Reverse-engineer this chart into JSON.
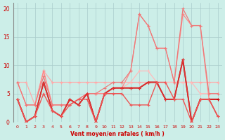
{
  "xlabel": "Vent moyen/en rafales ( km/h )",
  "bg_color": "#cceee8",
  "grid_color": "#aacccc",
  "xlim": [
    -0.5,
    23.5
  ],
  "ylim": [
    0,
    21
  ],
  "xticks": [
    0,
    1,
    2,
    3,
    4,
    5,
    6,
    7,
    8,
    9,
    10,
    11,
    12,
    13,
    14,
    15,
    16,
    17,
    18,
    19,
    20,
    21,
    22,
    23
  ],
  "yticks": [
    0,
    5,
    10,
    15,
    20
  ],
  "series": [
    {
      "x": [
        0,
        1,
        2,
        3,
        4,
        5,
        6,
        7,
        8,
        9,
        10,
        11,
        12,
        13,
        14,
        15,
        16,
        17,
        18,
        19,
        20,
        21,
        22,
        23
      ],
      "y": [
        7,
        7,
        3,
        9,
        7,
        7,
        7,
        7,
        7,
        7,
        7,
        7,
        7,
        7,
        7,
        7,
        7,
        7,
        7,
        7,
        7,
        7,
        7,
        7
      ],
      "color": "#ffaaaa",
      "lw": 0.9
    },
    {
      "x": [
        0,
        1,
        2,
        3,
        4,
        5,
        6,
        7,
        8,
        9,
        10,
        11,
        12,
        13,
        14,
        15,
        16,
        17,
        18,
        19,
        20,
        21,
        22,
        23
      ],
      "y": [
        7,
        3,
        3,
        9,
        3,
        3,
        3,
        4,
        5,
        5,
        5,
        6,
        6,
        7,
        9,
        9,
        7,
        7,
        7,
        7,
        7,
        5,
        5,
        5
      ],
      "color": "#ffbbbb",
      "lw": 0.9
    },
    {
      "x": [
        0,
        1,
        2,
        3,
        4,
        5,
        6,
        7,
        8,
        9,
        10,
        11,
        12,
        13,
        14,
        15,
        16,
        17,
        18,
        19,
        20,
        21,
        22,
        23
      ],
      "y": [
        7,
        3,
        3,
        9,
        3,
        3,
        3,
        4,
        5,
        5,
        5,
        6,
        6,
        9,
        19,
        17,
        13,
        13,
        7,
        19,
        17,
        17,
        4,
        4
      ],
      "color": "#ff8888",
      "lw": 0.9
    },
    {
      "x": [
        0,
        1,
        2,
        3,
        4,
        5,
        6,
        7,
        8,
        9,
        10,
        11,
        12,
        13,
        14,
        15,
        16,
        17,
        18,
        19,
        20,
        21,
        22,
        23
      ],
      "y": [
        7,
        3,
        3,
        8,
        3,
        3,
        3,
        4,
        5,
        5,
        6,
        7,
        7,
        9,
        19,
        17,
        13,
        13,
        7,
        20,
        17,
        17,
        5,
        5
      ],
      "color": "#ee7777",
      "lw": 0.85
    },
    {
      "x": [
        0,
        1,
        2,
        3,
        4,
        5,
        6,
        7,
        8,
        9,
        10,
        11,
        12,
        13,
        14,
        15,
        16,
        17,
        18,
        19,
        20,
        21,
        22,
        23
      ],
      "y": [
        4,
        0,
        1,
        7,
        2,
        1,
        4,
        3,
        5,
        0,
        5,
        6,
        6,
        6,
        6,
        7,
        7,
        4,
        4,
        11,
        0,
        4,
        4,
        4
      ],
      "color": "#cc0000",
      "lw": 1.3
    },
    {
      "x": [
        0,
        1,
        2,
        3,
        4,
        5,
        6,
        7,
        8,
        9,
        10,
        11,
        12,
        13,
        14,
        15,
        16,
        17,
        18,
        19,
        20,
        21,
        22,
        23
      ],
      "y": [
        4,
        0,
        1,
        7,
        2,
        1,
        4,
        3,
        5,
        0,
        5,
        6,
        6,
        6,
        6,
        7,
        7,
        4,
        4,
        11,
        0,
        4,
        4,
        1
      ],
      "color": "#dd3333",
      "lw": 1.1
    },
    {
      "x": [
        0,
        1,
        2,
        3,
        4,
        5,
        6,
        7,
        8,
        9,
        10,
        11,
        12,
        13,
        14,
        15,
        16,
        17,
        18,
        19,
        20,
        21,
        22,
        23
      ],
      "y": [
        4,
        0,
        1,
        5,
        2,
        1,
        3,
        4,
        4,
        0,
        5,
        5,
        5,
        3,
        3,
        3,
        7,
        7,
        4,
        4,
        0,
        4,
        4,
        1
      ],
      "color": "#ee5555",
      "lw": 1.0
    }
  ]
}
